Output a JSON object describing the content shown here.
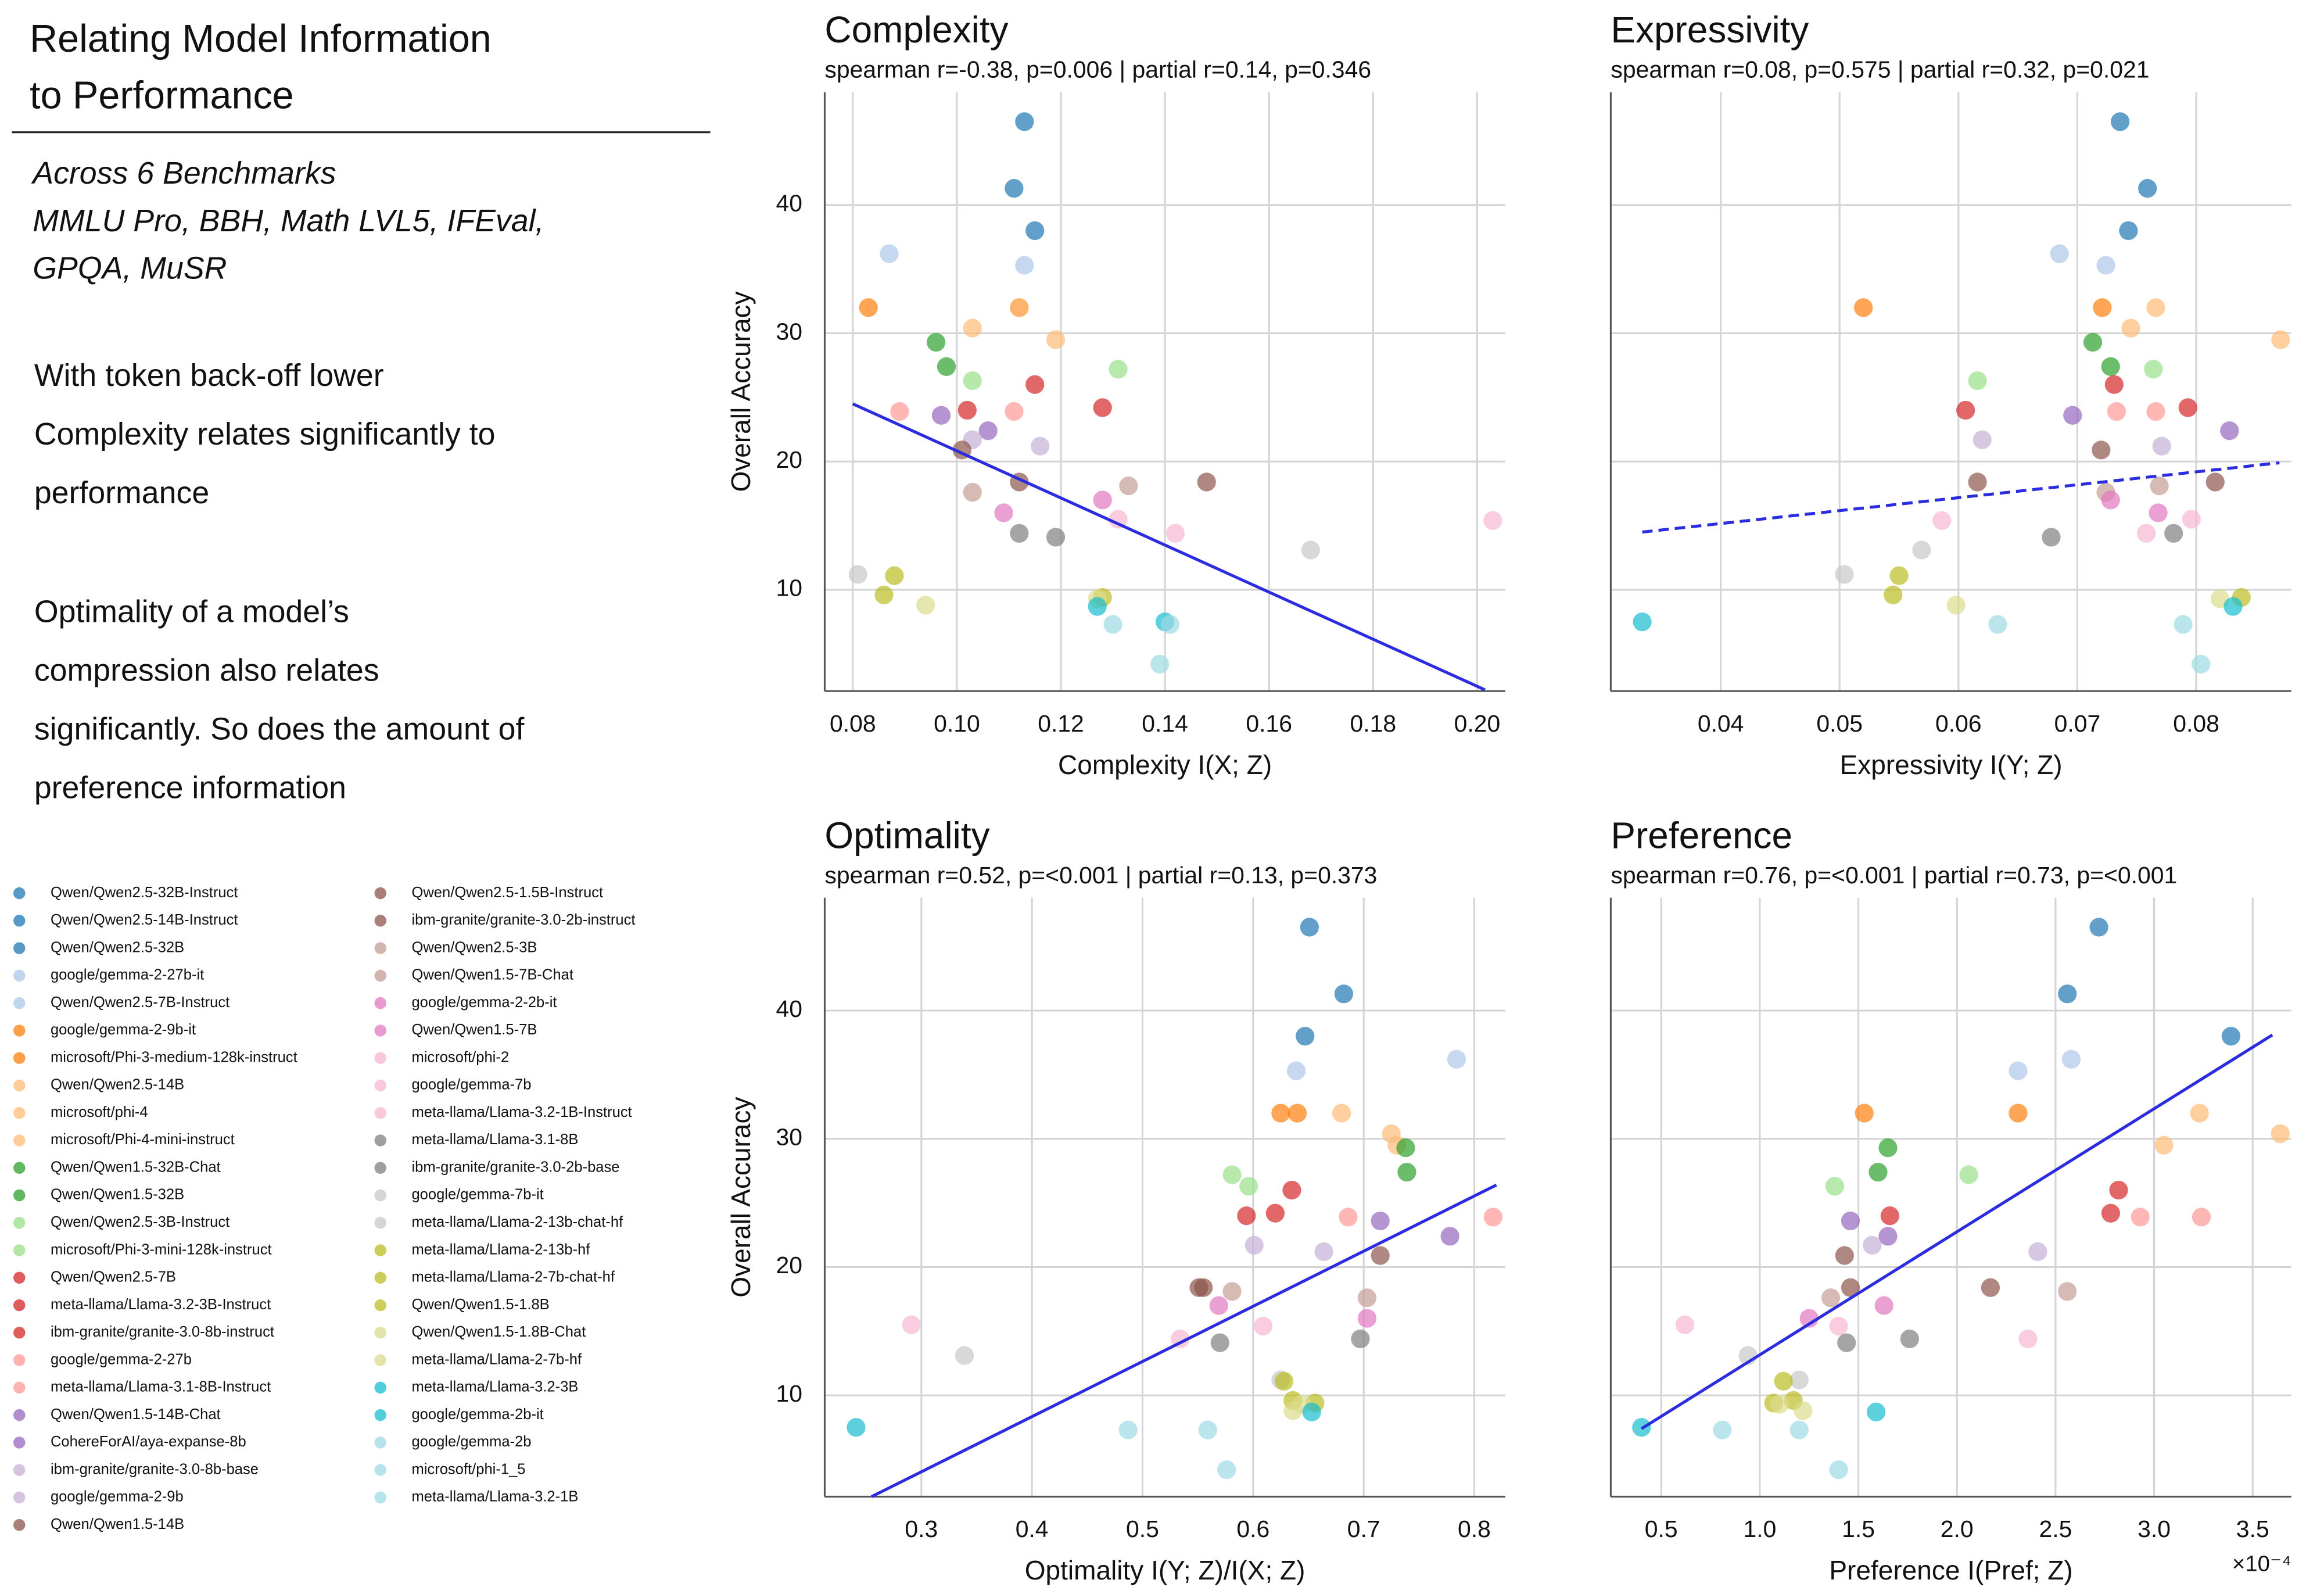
{
  "header": {
    "title": [
      "Relating Model Information",
      "to Performance"
    ],
    "benchmarks": [
      "Across 6 Benchmarks",
      "MMLU Pro, BBH, Math LVL5, IFEval,",
      "GPQA, MuSR"
    ],
    "notes": [
      [
        "With token back-off lower",
        "Complexity relates significantly to",
        "performance"
      ],
      [
        "Optimality of a model’s",
        "compression also relates",
        "significantly. So does the amount of",
        "preference information"
      ]
    ]
  },
  "legend": {
    "names": [
      "Qwen/Qwen2.5-32B-Instruct",
      "Qwen/Qwen2.5-14B-Instruct",
      "Qwen/Qwen2.5-32B",
      "google/gemma-2-27b-it",
      "Qwen/Qwen2.5-7B-Instruct",
      "google/gemma-2-9b-it",
      "microsoft/Phi-3-medium-128k-instruct",
      "Qwen/Qwen2.5-14B",
      "microsoft/phi-4",
      "microsoft/Phi-4-mini-instruct",
      "Qwen/Qwen1.5-32B-Chat",
      "Qwen/Qwen1.5-32B",
      "Qwen/Qwen2.5-3B-Instruct",
      "microsoft/Phi-3-mini-128k-instruct",
      "Qwen/Qwen2.5-7B",
      "meta-llama/Llama-3.2-3B-Instruct",
      "ibm-granite/granite-3.0-8b-instruct",
      "google/gemma-2-27b",
      "meta-llama/Llama-3.1-8B-Instruct",
      "Qwen/Qwen1.5-14B-Chat",
      "CohereForAI/aya-expanse-8b",
      "ibm-granite/granite-3.0-8b-base",
      "google/gemma-2-9b",
      "Qwen/Qwen1.5-14B",
      "Qwen/Qwen2.5-1.5B-Instruct",
      "ibm-granite/granite-3.0-2b-instruct",
      "Qwen/Qwen2.5-3B",
      "Qwen/Qwen1.5-7B-Chat",
      "google/gemma-2-2b-it",
      "Qwen/Qwen1.5-7B",
      "microsoft/phi-2",
      "google/gemma-7b",
      "meta-llama/Llama-3.2-1B-Instruct",
      "meta-llama/Llama-3.1-8B",
      "ibm-granite/granite-3.0-2b-base",
      "google/gemma-7b-it",
      "meta-llama/Llama-2-13b-chat-hf",
      "meta-llama/Llama-2-13b-hf",
      "meta-llama/Llama-2-7b-chat-hf",
      "Qwen/Qwen1.5-1.8B",
      "Qwen/Qwen1.5-1.8B-Chat",
      "meta-llama/Llama-2-7b-hf",
      "meta-llama/Llama-3.2-3B",
      "google/gemma-2b-it",
      "google/gemma-2b",
      "microsoft/phi-1_5",
      "meta-llama/Llama-3.2-1B"
    ],
    "colors": [
      "#1f77b4",
      "#1f77b4",
      "#1f77b4",
      "#aec7e8",
      "#aec7e8",
      "#ff7f0e",
      "#ff7f0e",
      "#ffbb78",
      "#ffbb78",
      "#ffbb78",
      "#2ca02c",
      "#2ca02c",
      "#98df8a",
      "#98df8a",
      "#d62728",
      "#d62728",
      "#d62728",
      "#ff9896",
      "#ff9896",
      "#9467bd",
      "#9467bd",
      "#c5b0d5",
      "#c5b0d5",
      "#8c564b",
      "#8c564b",
      "#8c564b",
      "#c49c94",
      "#c49c94",
      "#e377c2",
      "#e377c2",
      "#f7b6d2",
      "#f7b6d2",
      "#f7b6d2",
      "#7f7f7f",
      "#7f7f7f",
      "#c7c7c7",
      "#c7c7c7",
      "#bcbd22",
      "#bcbd22",
      "#bcbd22",
      "#dbdb8d",
      "#dbdb8d",
      "#17becf",
      "#17becf",
      "#9edae5",
      "#9edae5",
      "#9edae5"
    ]
  },
  "chart_data": [
    {
      "type": "scatter",
      "title": "Complexity",
      "subtitle": "spearman r=-0.38, p=0.006 | partial r=0.14, p=0.346",
      "xlabel": "Complexity I(X; Z)",
      "ylabel": "Overall Accuracy",
      "show_ytick_labels": true,
      "grid": true,
      "xlim": [
        0.0746,
        0.2054
      ],
      "ylim": [
        2.1,
        48.8
      ],
      "xticks": [
        0.08,
        {
          "value": 0.1,
          "label": "0.10"
        },
        0.12,
        0.14,
        0.16,
        0.18,
        {
          "value": 0.2,
          "label": "0.20"
        }
      ],
      "yticks": [
        10,
        20,
        30,
        40
      ],
      "x": [
        0.113,
        0.111,
        0.115,
        0.087,
        0.113,
        0.083,
        0.112,
        0.112,
        0.103,
        0.119,
        0.096,
        0.098,
        0.131,
        0.103,
        0.115,
        0.128,
        0.102,
        0.089,
        0.111,
        0.097,
        0.106,
        0.103,
        0.116,
        0.101,
        0.112,
        0.148,
        0.133,
        0.103,
        0.128,
        0.109,
        0.131,
        0.203,
        0.142,
        0.112,
        0.119,
        0.168,
        0.081,
        0.088,
        0.086,
        0.128,
        0.127,
        0.094,
        0.14,
        0.127,
        0.141,
        0.13,
        0.139
      ],
      "values": [
        46.5,
        41.3,
        38.0,
        36.2,
        35.3,
        32.0,
        32.0,
        32.0,
        30.4,
        29.5,
        29.3,
        27.4,
        27.2,
        26.3,
        26.0,
        24.2,
        24.0,
        23.9,
        23.9,
        23.6,
        22.4,
        21.7,
        21.2,
        20.9,
        18.4,
        18.4,
        18.1,
        17.6,
        17.0,
        16.0,
        15.5,
        15.4,
        14.4,
        14.4,
        14.1,
        13.1,
        11.2,
        11.1,
        9.6,
        9.4,
        9.3,
        8.8,
        7.5,
        8.7,
        7.3,
        7.3,
        4.2
      ],
      "fit": {
        "x": [
          0.08,
          0.2015
        ],
        "y": [
          24.5,
          2.2
        ],
        "style": "solid",
        "color": "#2b2be0"
      }
    },
    {
      "type": "scatter",
      "title": "Expressivity",
      "subtitle": "spearman r=0.08, p=0.575 | partial r=0.32, p=0.021",
      "xlabel": "Expressivity I(Y; Z)",
      "show_ytick_labels": false,
      "grid": true,
      "xlim": [
        0.03075,
        0.088
      ],
      "ylim": [
        2.1,
        48.8
      ],
      "xticks": [
        0.04,
        0.05,
        0.06,
        0.07,
        0.08
      ],
      "yticks": [
        10,
        20,
        30,
        40
      ],
      "x": [
        0.0736,
        0.0759,
        0.0743,
        0.0685,
        0.0724,
        0.052,
        0.0721,
        0.0766,
        0.0745,
        0.0871,
        0.0713,
        0.0728,
        0.0764,
        0.0616,
        0.0731,
        0.0793,
        0.0606,
        0.0733,
        0.0766,
        0.0696,
        0.0828,
        0.062,
        0.0771,
        0.072,
        0.0616,
        0.0816,
        0.0769,
        0.0724,
        0.0728,
        0.0768,
        0.0796,
        0.0586,
        0.0758,
        0.0781,
        0.0678,
        0.0569,
        0.0504,
        0.055,
        0.0545,
        0.0838,
        0.082,
        0.0598,
        0.0334,
        0.0831,
        0.0633,
        0.0789,
        0.0804
      ],
      "values": [
        46.5,
        41.3,
        38.0,
        36.2,
        35.3,
        32.0,
        32.0,
        32.0,
        30.4,
        29.5,
        29.3,
        27.4,
        27.2,
        26.3,
        26.0,
        24.2,
        24.0,
        23.9,
        23.9,
        23.6,
        22.4,
        21.7,
        21.2,
        20.9,
        18.4,
        18.4,
        18.1,
        17.6,
        17.0,
        16.0,
        15.5,
        15.4,
        14.4,
        14.4,
        14.1,
        13.1,
        11.2,
        11.1,
        9.6,
        9.4,
        9.3,
        8.8,
        7.5,
        8.7,
        7.3,
        7.3,
        4.2
      ],
      "fit": {
        "x": [
          0.0334,
          0.087
        ],
        "y": [
          14.5,
          19.9
        ],
        "style": "dashed",
        "color": "#2b2be0"
      }
    },
    {
      "type": "scatter",
      "title": "Optimality",
      "subtitle": "spearman r=0.52, p=<0.001 | partial r=0.13, p=0.373",
      "xlabel": "Optimality I(Y; Z)/I(X; Z)",
      "ylabel": "Overall Accuracy",
      "show_ytick_labels": true,
      "grid": true,
      "xlim": [
        0.2126,
        0.828
      ],
      "ylim": [
        2.1,
        48.8
      ],
      "xticks": [
        0.3,
        0.4,
        0.5,
        0.6,
        0.7,
        0.8
      ],
      "yticks": [
        10,
        20,
        30,
        40
      ],
      "x": [
        0.651,
        0.682,
        0.647,
        0.784,
        0.639,
        0.625,
        0.64,
        0.68,
        0.725,
        0.73,
        0.738,
        0.739,
        0.581,
        0.596,
        0.635,
        0.62,
        0.594,
        0.817,
        0.686,
        0.715,
        0.778,
        0.601,
        0.664,
        0.715,
        0.551,
        0.555,
        0.581,
        0.703,
        0.569,
        0.703,
        0.291,
        0.609,
        0.534,
        0.697,
        0.57,
        0.339,
        0.625,
        0.628,
        0.636,
        0.656,
        0.644,
        0.636,
        0.241,
        0.653,
        0.559,
        0.487,
        0.576
      ],
      "values": [
        46.5,
        41.3,
        38.0,
        36.2,
        35.3,
        32.0,
        32.0,
        32.0,
        30.4,
        29.5,
        29.3,
        27.4,
        27.2,
        26.3,
        26.0,
        24.2,
        24.0,
        23.9,
        23.9,
        23.6,
        22.4,
        21.7,
        21.2,
        20.9,
        18.4,
        18.4,
        18.1,
        17.6,
        17.0,
        16.0,
        15.5,
        15.4,
        14.4,
        14.4,
        14.1,
        13.1,
        11.2,
        11.1,
        9.6,
        9.4,
        9.3,
        8.8,
        7.5,
        8.7,
        7.3,
        7.3,
        4.2
      ],
      "fit": {
        "x": [
          0.255,
          0.82
        ],
        "y": [
          2.1,
          26.4
        ],
        "style": "solid",
        "color": "#2b2be0"
      }
    },
    {
      "type": "scatter",
      "title": "Preference",
      "subtitle": "spearman r=0.76, p=<0.001 | partial r=0.73, p=<0.001",
      "xlabel": "Preference I(Pref; Z)",
      "x_offset_label": "×10⁻⁴",
      "show_ytick_labels": false,
      "grid": true,
      "xlim": [
        0.244,
        3.696
      ],
      "ylim": [
        2.1,
        48.8
      ],
      "xticks": [
        0.5,
        {
          "value": 1,
          "label": "1.0"
        },
        1.5,
        {
          "value": 2,
          "label": "2.0"
        },
        2.5,
        {
          "value": 3,
          "label": "3.0"
        },
        3.5
      ],
      "yticks": [
        10,
        20,
        30,
        40
      ],
      "x": [
        2.72,
        2.56,
        3.39,
        2.58,
        2.31,
        1.53,
        2.31,
        3.23,
        3.64,
        3.05,
        1.65,
        1.6,
        2.06,
        1.38,
        2.82,
        2.78,
        1.66,
        3.24,
        2.93,
        1.46,
        1.65,
        1.57,
        2.41,
        1.43,
        2.17,
        1.46,
        2.56,
        1.36,
        1.63,
        1.25,
        0.62,
        1.4,
        2.36,
        1.76,
        1.44,
        0.94,
        1.2,
        1.12,
        1.17,
        1.07,
        1.1,
        1.22,
        0.4,
        1.59,
        0.81,
        1.2,
        1.4
      ],
      "values": [
        46.5,
        41.3,
        38.0,
        36.2,
        35.3,
        32.0,
        32.0,
        32.0,
        30.4,
        29.5,
        29.3,
        27.4,
        27.2,
        26.3,
        26.0,
        24.2,
        24.0,
        23.9,
        23.9,
        23.6,
        22.4,
        21.7,
        21.2,
        20.9,
        18.4,
        18.4,
        18.1,
        17.6,
        17.0,
        16.0,
        15.5,
        15.4,
        14.4,
        14.4,
        14.1,
        13.1,
        11.2,
        11.1,
        9.6,
        9.4,
        9.3,
        8.8,
        7.5,
        8.7,
        7.3,
        7.3,
        4.2
      ],
      "fit": {
        "x": [
          0.4,
          3.6
        ],
        "y": [
          7.4,
          38.1
        ],
        "style": "solid",
        "color": "#2b2be0"
      }
    }
  ]
}
